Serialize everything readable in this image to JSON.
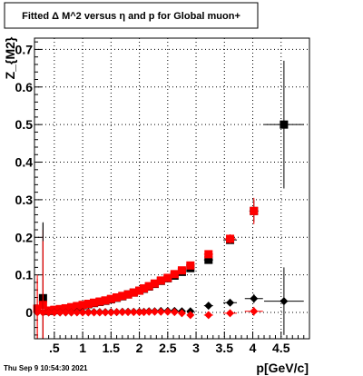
{
  "chart_data": {
    "type": "scatter",
    "title": "Fitted Δ M^2 versus η and p for Global muon+",
    "xlabel": "p[GeV/c]",
    "ylabel": "Z_{M2}",
    "xlim": [
      0.15,
      5.0
    ],
    "ylim": [
      -0.07,
      0.73
    ],
    "grid": true,
    "xticks": [
      {
        "value": 0.5,
        "label": ".5"
      },
      {
        "value": 1.0,
        "label": "1"
      },
      {
        "value": 1.5,
        "label": "1.5"
      },
      {
        "value": 2.0,
        "label": "2"
      },
      {
        "value": 2.5,
        "label": "2.5"
      },
      {
        "value": 3.0,
        "label": "3"
      },
      {
        "value": 3.5,
        "label": "3.5"
      },
      {
        "value": 4.0,
        "label": "4"
      },
      {
        "value": 4.5,
        "label": "4.5"
      }
    ],
    "yticks": [
      {
        "value": 0.0,
        "label": "0"
      },
      {
        "value": 0.1,
        "label": "0.1"
      },
      {
        "value": 0.2,
        "label": "0.2"
      },
      {
        "value": 0.3,
        "label": "0.3"
      },
      {
        "value": 0.4,
        "label": "0.4"
      },
      {
        "value": 0.5,
        "label": "0.5"
      },
      {
        "value": 0.6,
        "label": "0.6"
      },
      {
        "value": 0.7,
        "label": "0.7"
      }
    ],
    "series": [
      {
        "marker": "square",
        "color": "#000000",
        "points": [
          {
            "x": 4.55,
            "y": 0.5,
            "xerr": 0.35,
            "yerr": 0.17
          },
          {
            "x": 4.02,
            "y": 0.27,
            "xerr": 0.08,
            "yerr": 0.03
          },
          {
            "x": 3.6,
            "y": 0.193,
            "xerr": 0.12,
            "yerr": 0.01
          },
          {
            "x": 3.22,
            "y": 0.14,
            "xerr": 0.08,
            "yerr": 0.006
          },
          {
            "x": 2.9,
            "y": 0.118,
            "xerr": 0.06,
            "yerr": 0.004
          },
          {
            "x": 2.75,
            "y": 0.108,
            "xerr": 0.06,
            "yerr": 0.004
          },
          {
            "x": 2.62,
            "y": 0.098,
            "xerr": 0.05,
            "yerr": 0.004
          },
          {
            "x": 2.5,
            "y": 0.091,
            "xerr": 0.05,
            "yerr": 0.004
          },
          {
            "x": 2.38,
            "y": 0.084,
            "xerr": 0.05,
            "yerr": 0.004
          },
          {
            "x": 2.27,
            "y": 0.076,
            "xerr": 0.05,
            "yerr": 0.004
          },
          {
            "x": 2.17,
            "y": 0.069,
            "xerr": 0.04,
            "yerr": 0.004
          },
          {
            "x": 2.08,
            "y": 0.063,
            "xerr": 0.04,
            "yerr": 0.004
          },
          {
            "x": 2.0,
            "y": 0.058,
            "xerr": 0.04,
            "yerr": 0.004
          },
          {
            "x": 1.9,
            "y": 0.053,
            "xerr": 0.04,
            "yerr": 0.004
          },
          {
            "x": 1.8,
            "y": 0.048,
            "xerr": 0.04,
            "yerr": 0.004
          },
          {
            "x": 1.7,
            "y": 0.043,
            "xerr": 0.04,
            "yerr": 0.004
          },
          {
            "x": 1.6,
            "y": 0.039,
            "xerr": 0.04,
            "yerr": 0.004
          },
          {
            "x": 1.5,
            "y": 0.035,
            "xerr": 0.04,
            "yerr": 0.004
          },
          {
            "x": 1.4,
            "y": 0.031,
            "xerr": 0.04,
            "yerr": 0.004
          },
          {
            "x": 1.3,
            "y": 0.028,
            "xerr": 0.04,
            "yerr": 0.004
          },
          {
            "x": 1.2,
            "y": 0.025,
            "xerr": 0.04,
            "yerr": 0.004
          },
          {
            "x": 1.1,
            "y": 0.022,
            "xerr": 0.04,
            "yerr": 0.004
          },
          {
            "x": 1.0,
            "y": 0.019,
            "xerr": 0.04,
            "yerr": 0.004
          },
          {
            "x": 0.9,
            "y": 0.016,
            "xerr": 0.04,
            "yerr": 0.004
          },
          {
            "x": 0.8,
            "y": 0.013,
            "xerr": 0.04,
            "yerr": 0.004
          },
          {
            "x": 0.7,
            "y": 0.011,
            "xerr": 0.04,
            "yerr": 0.004
          },
          {
            "x": 0.6,
            "y": 0.008,
            "xerr": 0.04,
            "yerr": 0.004
          },
          {
            "x": 0.5,
            "y": 0.006,
            "xerr": 0.04,
            "yerr": 0.004
          },
          {
            "x": 0.4,
            "y": 0.004,
            "xerr": 0.04,
            "yerr": 0.005
          },
          {
            "x": 0.3,
            "y": 0.038,
            "xerr": 0.05,
            "yerr": 0.2
          }
        ]
      },
      {
        "marker": "square",
        "color": "#ff0000",
        "points": [
          {
            "x": 4.02,
            "y": 0.27,
            "xerr": 0.06,
            "yerr": 0.035
          },
          {
            "x": 3.6,
            "y": 0.196,
            "xerr": 0.1,
            "yerr": 0.012
          },
          {
            "x": 3.22,
            "y": 0.155,
            "xerr": 0.08,
            "yerr": 0.008
          },
          {
            "x": 2.9,
            "y": 0.125,
            "xerr": 0.06,
            "yerr": 0.005
          },
          {
            "x": 2.75,
            "y": 0.112,
            "xerr": 0.06,
            "yerr": 0.005
          },
          {
            "x": 2.62,
            "y": 0.102,
            "xerr": 0.05,
            "yerr": 0.005
          },
          {
            "x": 2.5,
            "y": 0.092,
            "xerr": 0.05,
            "yerr": 0.005
          },
          {
            "x": 2.38,
            "y": 0.085,
            "xerr": 0.05,
            "yerr": 0.005
          },
          {
            "x": 2.27,
            "y": 0.077,
            "xerr": 0.05,
            "yerr": 0.005
          },
          {
            "x": 2.17,
            "y": 0.07,
            "xerr": 0.04,
            "yerr": 0.005
          },
          {
            "x": 2.08,
            "y": 0.064,
            "xerr": 0.04,
            "yerr": 0.005
          },
          {
            "x": 2.0,
            "y": 0.058,
            "xerr": 0.04,
            "yerr": 0.005
          },
          {
            "x": 1.9,
            "y": 0.053,
            "xerr": 0.04,
            "yerr": 0.005
          },
          {
            "x": 1.8,
            "y": 0.048,
            "xerr": 0.04,
            "yerr": 0.005
          },
          {
            "x": 1.7,
            "y": 0.044,
            "xerr": 0.04,
            "yerr": 0.005
          },
          {
            "x": 1.6,
            "y": 0.04,
            "xerr": 0.04,
            "yerr": 0.005
          },
          {
            "x": 1.5,
            "y": 0.036,
            "xerr": 0.04,
            "yerr": 0.005
          },
          {
            "x": 1.4,
            "y": 0.032,
            "xerr": 0.04,
            "yerr": 0.005
          },
          {
            "x": 1.3,
            "y": 0.029,
            "xerr": 0.04,
            "yerr": 0.005
          },
          {
            "x": 1.2,
            "y": 0.026,
            "xerr": 0.04,
            "yerr": 0.005
          },
          {
            "x": 1.1,
            "y": 0.023,
            "xerr": 0.04,
            "yerr": 0.005
          },
          {
            "x": 1.0,
            "y": 0.02,
            "xerr": 0.04,
            "yerr": 0.005
          },
          {
            "x": 0.9,
            "y": 0.017,
            "xerr": 0.04,
            "yerr": 0.005
          },
          {
            "x": 0.8,
            "y": 0.014,
            "xerr": 0.04,
            "yerr": 0.005
          },
          {
            "x": 0.7,
            "y": 0.011,
            "xerr": 0.04,
            "yerr": 0.005
          },
          {
            "x": 0.6,
            "y": 0.009,
            "xerr": 0.04,
            "yerr": 0.005
          },
          {
            "x": 0.5,
            "y": 0.007,
            "xerr": 0.04,
            "yerr": 0.005
          },
          {
            "x": 0.4,
            "y": 0.005,
            "xerr": 0.04,
            "yerr": 0.008
          },
          {
            "x": 0.3,
            "y": 0.02,
            "xerr": 0.05,
            "yerr": 0.2
          },
          {
            "x": 0.2,
            "y": 0.01,
            "xerr": 0.04,
            "yerr": 0.08
          }
        ]
      },
      {
        "marker": "diamond",
        "color": "#000000",
        "points": [
          {
            "x": 4.55,
            "y": 0.03,
            "xerr": 0.35,
            "yerr": 0.09
          },
          {
            "x": 4.02,
            "y": 0.037,
            "xerr": 0.16,
            "yerr": 0.012
          },
          {
            "x": 3.6,
            "y": 0.026,
            "xerr": 0.12,
            "yerr": 0.006
          },
          {
            "x": 3.22,
            "y": 0.018,
            "xerr": 0.08,
            "yerr": 0.005
          },
          {
            "x": 2.9,
            "y": 0.003,
            "xerr": 0.06,
            "yerr": 0.004
          },
          {
            "x": 2.75,
            "y": 0.003,
            "xerr": 0.06,
            "yerr": 0.003
          },
          {
            "x": 2.62,
            "y": 0.004,
            "xerr": 0.05,
            "yerr": 0.003
          },
          {
            "x": 2.5,
            "y": 0.004,
            "xerr": 0.05,
            "yerr": 0.003
          },
          {
            "x": 2.38,
            "y": 0.004,
            "xerr": 0.05,
            "yerr": 0.003
          },
          {
            "x": 2.27,
            "y": 0.003,
            "xerr": 0.05,
            "yerr": 0.003
          },
          {
            "x": 2.17,
            "y": 0.003,
            "xerr": 0.04,
            "yerr": 0.003
          },
          {
            "x": 2.08,
            "y": 0.002,
            "xerr": 0.04,
            "yerr": 0.003
          },
          {
            "x": 2.0,
            "y": 0.002,
            "xerr": 0.04,
            "yerr": 0.003
          },
          {
            "x": 1.9,
            "y": 0.002,
            "xerr": 0.04,
            "yerr": 0.003
          },
          {
            "x": 1.8,
            "y": 0.002,
            "xerr": 0.04,
            "yerr": 0.003
          },
          {
            "x": 1.7,
            "y": 0.002,
            "xerr": 0.04,
            "yerr": 0.003
          },
          {
            "x": 1.6,
            "y": 0.001,
            "xerr": 0.04,
            "yerr": 0.003
          },
          {
            "x": 1.5,
            "y": 0.001,
            "xerr": 0.04,
            "yerr": 0.003
          },
          {
            "x": 1.4,
            "y": 0.001,
            "xerr": 0.04,
            "yerr": 0.003
          },
          {
            "x": 1.3,
            "y": 0.001,
            "xerr": 0.04,
            "yerr": 0.003
          },
          {
            "x": 1.2,
            "y": 0.001,
            "xerr": 0.04,
            "yerr": 0.003
          },
          {
            "x": 1.1,
            "y": 0.001,
            "xerr": 0.04,
            "yerr": 0.003
          },
          {
            "x": 1.0,
            "y": 0.001,
            "xerr": 0.04,
            "yerr": 0.003
          },
          {
            "x": 0.9,
            "y": 0.001,
            "xerr": 0.04,
            "yerr": 0.003
          },
          {
            "x": 0.8,
            "y": 0.0,
            "xerr": 0.04,
            "yerr": 0.003
          },
          {
            "x": 0.7,
            "y": 0.0,
            "xerr": 0.04,
            "yerr": 0.003
          },
          {
            "x": 0.6,
            "y": 0.0,
            "xerr": 0.04,
            "yerr": 0.003
          },
          {
            "x": 0.5,
            "y": 0.0,
            "xerr": 0.04,
            "yerr": 0.003
          },
          {
            "x": 0.4,
            "y": 0.0,
            "xerr": 0.04,
            "yerr": 0.004
          },
          {
            "x": 0.3,
            "y": 0.0,
            "xerr": 0.05,
            "yerr": 0.24
          }
        ]
      },
      {
        "marker": "diamond",
        "color": "#ff0000",
        "points": [
          {
            "x": 4.02,
            "y": 0.003,
            "xerr": 0.16,
            "yerr": 0.012
          },
          {
            "x": 3.6,
            "y": -0.002,
            "xerr": 0.12,
            "yerr": 0.006
          },
          {
            "x": 3.22,
            "y": -0.007,
            "xerr": 0.08,
            "yerr": 0.005
          },
          {
            "x": 2.9,
            "y": -0.007,
            "xerr": 0.06,
            "yerr": 0.004
          },
          {
            "x": 2.75,
            "y": -0.002,
            "xerr": 0.06,
            "yerr": 0.003
          },
          {
            "x": 2.62,
            "y": 0.001,
            "xerr": 0.05,
            "yerr": 0.003
          },
          {
            "x": 2.5,
            "y": 0.002,
            "xerr": 0.05,
            "yerr": 0.003
          },
          {
            "x": 2.38,
            "y": 0.002,
            "xerr": 0.05,
            "yerr": 0.003
          },
          {
            "x": 2.27,
            "y": 0.002,
            "xerr": 0.05,
            "yerr": 0.003
          },
          {
            "x": 2.17,
            "y": 0.002,
            "xerr": 0.04,
            "yerr": 0.003
          },
          {
            "x": 2.08,
            "y": 0.001,
            "xerr": 0.04,
            "yerr": 0.003
          },
          {
            "x": 2.0,
            "y": 0.001,
            "xerr": 0.04,
            "yerr": 0.003
          },
          {
            "x": 1.9,
            "y": 0.001,
            "xerr": 0.04,
            "yerr": 0.003
          },
          {
            "x": 1.8,
            "y": 0.001,
            "xerr": 0.04,
            "yerr": 0.003
          },
          {
            "x": 1.7,
            "y": 0.001,
            "xerr": 0.04,
            "yerr": 0.003
          },
          {
            "x": 1.6,
            "y": 0.001,
            "xerr": 0.04,
            "yerr": 0.003
          },
          {
            "x": 1.5,
            "y": 0.0,
            "xerr": 0.04,
            "yerr": 0.003
          },
          {
            "x": 1.4,
            "y": 0.0,
            "xerr": 0.04,
            "yerr": 0.003
          },
          {
            "x": 1.3,
            "y": 0.0,
            "xerr": 0.04,
            "yerr": 0.003
          },
          {
            "x": 1.2,
            "y": 0.0,
            "xerr": 0.04,
            "yerr": 0.003
          },
          {
            "x": 1.1,
            "y": 0.0,
            "xerr": 0.04,
            "yerr": 0.003
          },
          {
            "x": 1.0,
            "y": 0.0,
            "xerr": 0.04,
            "yerr": 0.003
          },
          {
            "x": 0.9,
            "y": 0.0,
            "xerr": 0.04,
            "yerr": 0.003
          },
          {
            "x": 0.8,
            "y": 0.0,
            "xerr": 0.04,
            "yerr": 0.003
          },
          {
            "x": 0.7,
            "y": 0.0,
            "xerr": 0.04,
            "yerr": 0.003
          },
          {
            "x": 0.6,
            "y": 0.0,
            "xerr": 0.04,
            "yerr": 0.003
          },
          {
            "x": 0.5,
            "y": 0.0,
            "xerr": 0.04,
            "yerr": 0.003
          },
          {
            "x": 0.4,
            "y": 0.0,
            "xerr": 0.04,
            "yerr": 0.004
          },
          {
            "x": 0.3,
            "y": 0.0,
            "xerr": 0.05,
            "yerr": 0.19
          },
          {
            "x": 0.2,
            "y": 0.0,
            "xerr": 0.04,
            "yerr": 0.1
          }
        ]
      }
    ]
  },
  "footer": {
    "timestamp": "Thu Sep  9 10:54:30 2021"
  }
}
